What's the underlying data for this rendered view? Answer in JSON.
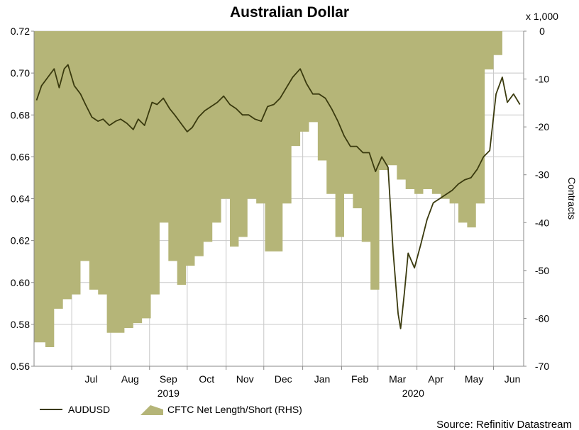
{
  "chart_data": {
    "type": "line",
    "title": "Australian Dollar",
    "x_tick_labels": [
      "Jul",
      "Aug",
      "Sep",
      "Oct",
      "Nov",
      "Dec",
      "Jan",
      "Feb",
      "Mar",
      "Apr",
      "May",
      "Jun"
    ],
    "x_year_labels": [
      "2019",
      "2020"
    ],
    "left_axis": {
      "ylim": [
        0.56,
        0.72
      ],
      "ticks": [
        "0.72",
        "0.70",
        "0.68",
        "0.66",
        "0.64",
        "0.62",
        "0.60",
        "0.58",
        "0.56"
      ]
    },
    "right_axis": {
      "ylim": [
        -70,
        0
      ],
      "ticks": [
        "0",
        "-10",
        "-20",
        "-30",
        "-40",
        "-50",
        "-60",
        "-70"
      ],
      "ylabel": "Contracts",
      "unit": "x 1,000"
    },
    "colors": {
      "line": "#3a3a0e",
      "area": "#b5b578",
      "grid": "#c8c8c8"
    },
    "series": [
      {
        "name": "AUDUSD",
        "axis": "left",
        "x": [
          "2019-06-03",
          "2019-06-07",
          "2019-06-12",
          "2019-06-17",
          "2019-06-21",
          "2019-06-25",
          "2019-06-28",
          "2019-07-03",
          "2019-07-08",
          "2019-07-12",
          "2019-07-17",
          "2019-07-22",
          "2019-07-26",
          "2019-07-31",
          "2019-08-05",
          "2019-08-09",
          "2019-08-14",
          "2019-08-19",
          "2019-08-23",
          "2019-08-28",
          "2019-09-03",
          "2019-09-07",
          "2019-09-12",
          "2019-09-17",
          "2019-09-21",
          "2019-09-26",
          "2019-10-01",
          "2019-10-05",
          "2019-10-10",
          "2019-10-15",
          "2019-10-20",
          "2019-10-25",
          "2019-10-30",
          "2019-11-04",
          "2019-11-09",
          "2019-11-14",
          "2019-11-19",
          "2019-11-24",
          "2019-11-29",
          "2019-12-04",
          "2019-12-09",
          "2019-12-14",
          "2019-12-19",
          "2019-12-24",
          "2019-12-30",
          "2020-01-04",
          "2020-01-09",
          "2020-01-14",
          "2020-01-19",
          "2020-01-24",
          "2020-01-29",
          "2020-02-03",
          "2020-02-08",
          "2020-02-13",
          "2020-02-18",
          "2020-02-23",
          "2020-02-28",
          "2020-03-04",
          "2020-03-09",
          "2020-03-13",
          "2020-03-17",
          "2020-03-19",
          "2020-03-22",
          "2020-03-25",
          "2020-03-30",
          "2020-04-04",
          "2020-04-09",
          "2020-04-14",
          "2020-04-19",
          "2020-04-24",
          "2020-04-29",
          "2020-05-04",
          "2020-05-09",
          "2020-05-14",
          "2020-05-19",
          "2020-05-24",
          "2020-05-29",
          "2020-06-03",
          "2020-06-08",
          "2020-06-12",
          "2020-06-17",
          "2020-06-22"
        ],
        "values": [
          0.687,
          0.694,
          0.698,
          0.702,
          0.693,
          0.702,
          0.704,
          0.694,
          0.69,
          0.685,
          0.679,
          0.677,
          0.678,
          0.675,
          0.677,
          0.678,
          0.676,
          0.673,
          0.678,
          0.675,
          0.686,
          0.685,
          0.688,
          0.683,
          0.68,
          0.676,
          0.672,
          0.674,
          0.679,
          0.682,
          0.684,
          0.686,
          0.689,
          0.685,
          0.683,
          0.68,
          0.68,
          0.678,
          0.677,
          0.684,
          0.685,
          0.688,
          0.693,
          0.698,
          0.702,
          0.695,
          0.69,
          0.69,
          0.688,
          0.683,
          0.677,
          0.67,
          0.665,
          0.665,
          0.662,
          0.662,
          0.653,
          0.66,
          0.655,
          0.615,
          0.585,
          0.578,
          0.595,
          0.614,
          0.607,
          0.618,
          0.63,
          0.638,
          0.64,
          0.642,
          0.644,
          0.647,
          0.649,
          0.65,
          0.654,
          0.66,
          0.663,
          0.69,
          0.698,
          0.686,
          0.69,
          0.685
        ],
        "legend": "AUDUSD"
      },
      {
        "name": "CFTC Net Length/Short (RHS)",
        "axis": "right",
        "type": "area",
        "x": [
          "2019-06-03",
          "2019-06-10",
          "2019-06-17",
          "2019-06-24",
          "2019-07-01",
          "2019-07-08",
          "2019-07-15",
          "2019-07-22",
          "2019-07-29",
          "2019-08-05",
          "2019-08-12",
          "2019-08-19",
          "2019-08-26",
          "2019-09-02",
          "2019-09-09",
          "2019-09-16",
          "2019-09-23",
          "2019-09-30",
          "2019-10-07",
          "2019-10-14",
          "2019-10-21",
          "2019-10-28",
          "2019-11-04",
          "2019-11-11",
          "2019-11-18",
          "2019-11-25",
          "2019-12-02",
          "2019-12-09",
          "2019-12-16",
          "2019-12-23",
          "2019-12-30",
          "2020-01-06",
          "2020-01-13",
          "2020-01-20",
          "2020-01-27",
          "2020-02-03",
          "2020-02-10",
          "2020-02-17",
          "2020-02-24",
          "2020-03-02",
          "2020-03-09",
          "2020-03-16",
          "2020-03-23",
          "2020-03-30",
          "2020-04-06",
          "2020-04-13",
          "2020-04-20",
          "2020-04-27",
          "2020-05-04",
          "2020-05-11",
          "2020-05-18",
          "2020-05-25",
          "2020-06-01",
          "2020-06-08",
          "2020-06-15"
        ],
        "values": [
          -65,
          -66,
          -58,
          -56,
          -55,
          -48,
          -54,
          -55,
          -63,
          -63,
          -62,
          -61,
          -60,
          -55,
          -40,
          -48,
          -53,
          -49,
          -47,
          -44,
          -40,
          -35,
          -45,
          -43,
          -35,
          -36,
          -46,
          -46,
          -36,
          -24,
          -21,
          -19,
          -27,
          -34,
          -43,
          -34,
          -37,
          -44,
          -54,
          -29,
          -28,
          -31,
          -33,
          -34,
          -33,
          -34,
          -35,
          -36,
          -40,
          -41,
          -36,
          -8,
          -5,
          0,
          0
        ],
        "legend": "CFTC Net Length/Short (RHS)"
      }
    ],
    "grid": true,
    "legend_position": "bottom-left"
  },
  "source": "Source: Refinitiv Datastream"
}
